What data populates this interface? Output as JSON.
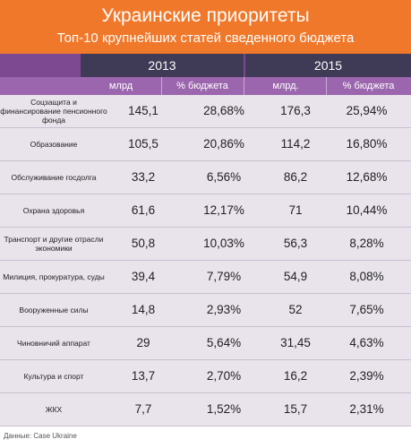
{
  "header": {
    "title": "Украинские приоритеты",
    "subtitle": "Топ-10 крупнейших статей сведенного бюджета"
  },
  "columns": {
    "year1": "2013",
    "year2": "2015",
    "sub": [
      "млрд",
      "% бюджета",
      "млрд.",
      "% бюджета"
    ]
  },
  "rows": [
    {
      "label": "Соцзащита и финансирование пенсионного фонда",
      "v2013": "145,1",
      "p2013": "28,68%",
      "v2015": "176,3",
      "p2015": "25,94%"
    },
    {
      "label": "Образование",
      "v2013": "105,5",
      "p2013": "20,86%",
      "v2015": "114,2",
      "p2015": "16,80%"
    },
    {
      "label": "Обслуживание госдолга",
      "v2013": "33,2",
      "p2013": "6,56%",
      "v2015": "86,2",
      "p2015": "12,68%"
    },
    {
      "label": "Охрана здоровья",
      "v2013": "61,6",
      "p2013": "12,17%",
      "v2015": "71",
      "p2015": "10,44%"
    },
    {
      "label": "Транспорт и другие отрасли экономики",
      "v2013": "50,8",
      "p2013": "10,03%",
      "v2015": "56,3",
      "p2015": "8,28%"
    },
    {
      "label": "Милиция, прокуратура, суды",
      "v2013": "39,4",
      "p2013": "7,79%",
      "v2015": "54,9",
      "p2015": "8,08%"
    },
    {
      "label": "Вооруженные силы",
      "v2013": "14,8",
      "p2013": "2,93%",
      "v2015": "52",
      "p2015": "7,65%"
    },
    {
      "label": "Чиновничий аппарат",
      "v2013": "29",
      "p2013": "5,64%",
      "v2015": "31,45",
      "p2015": "4,63%"
    },
    {
      "label": "Культура и спорт",
      "v2013": "13,7",
      "p2013": "2,70%",
      "v2015": "16,2",
      "p2015": "2,39%"
    },
    {
      "label": "ЖКХ",
      "v2013": "7,7",
      "p2013": "1,52%",
      "v2015": "15,7",
      "p2015": "2,31%"
    }
  ],
  "source": "Данные: Case Ukraine"
}
